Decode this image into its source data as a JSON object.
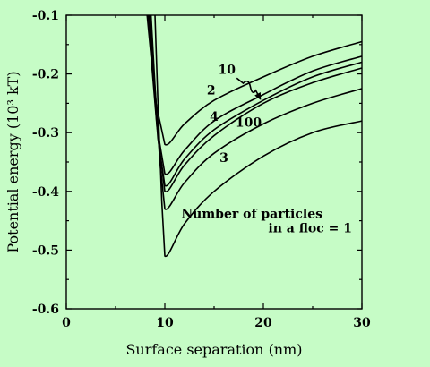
{
  "colors": {
    "background": "#c6fcc6",
    "ink": "#000000"
  },
  "chart_data": {
    "type": "line",
    "title": "",
    "xlabel": "Surface separation (nm)",
    "ylabel": "Potential energy (10³ kT)",
    "xlim": [
      0,
      30
    ],
    "ylim": [
      -0.6,
      -0.1
    ],
    "xticks": [
      0,
      10,
      20,
      30
    ],
    "xtick_labels": [
      "0",
      "10",
      "20",
      "30"
    ],
    "yticks": [
      -0.1,
      -0.2,
      -0.3,
      -0.4,
      -0.5,
      -0.6
    ],
    "ytick_labels": [
      "-0.1",
      "-0.2",
      "-0.3",
      "-0.4",
      "-0.5",
      "-0.6"
    ],
    "grid": false,
    "legend": "none",
    "series": [
      {
        "name": "1",
        "x": [
          9.0,
          9.3,
          9.7,
          10.0,
          12,
          15,
          20,
          25,
          30
        ],
        "y": [
          -0.1,
          -0.25,
          -0.42,
          -0.51,
          -0.455,
          -0.4,
          -0.34,
          -0.3,
          -0.28
        ]
      },
      {
        "name": "3",
        "x": [
          8.6,
          9.0,
          9.5,
          10.0,
          12,
          15,
          20,
          25,
          30
        ],
        "y": [
          -0.1,
          -0.22,
          -0.35,
          -0.43,
          -0.385,
          -0.335,
          -0.285,
          -0.25,
          -0.225
        ]
      },
      {
        "name": "100",
        "x": [
          8.5,
          8.9,
          9.4,
          10.0,
          12,
          15,
          20,
          25,
          30
        ],
        "y": [
          -0.1,
          -0.2,
          -0.32,
          -0.4,
          -0.355,
          -0.305,
          -0.25,
          -0.215,
          -0.19
        ]
      },
      {
        "name": "10",
        "x": [
          8.4,
          8.8,
          9.3,
          10.0,
          12,
          15,
          20,
          25,
          30
        ],
        "y": [
          -0.1,
          -0.2,
          -0.31,
          -0.39,
          -0.345,
          -0.295,
          -0.245,
          -0.205,
          -0.18
        ]
      },
      {
        "name": "4",
        "x": [
          8.3,
          8.7,
          9.2,
          10.0,
          12,
          15,
          20,
          25,
          30
        ],
        "y": [
          -0.1,
          -0.19,
          -0.29,
          -0.37,
          -0.33,
          -0.28,
          -0.235,
          -0.195,
          -0.17
        ]
      },
      {
        "name": "2",
        "x": [
          8.2,
          8.6,
          9.1,
          10.0,
          12,
          15,
          20,
          25,
          30
        ],
        "y": [
          -0.1,
          -0.17,
          -0.25,
          -0.32,
          -0.285,
          -0.245,
          -0.205,
          -0.17,
          -0.145
        ]
      }
    ],
    "annotations": [
      {
        "text": "2",
        "x": 14.7,
        "y": -0.235
      },
      {
        "text": "4",
        "x": 15.0,
        "y": -0.28
      },
      {
        "text": "10",
        "x": 16.3,
        "y": -0.2
      },
      {
        "text": "100",
        "x": 18.5,
        "y": -0.29
      },
      {
        "text": "3",
        "x": 16.0,
        "y": -0.35
      },
      {
        "text": "Number of particles",
        "x": 26.0,
        "y": -0.445
      },
      {
        "text": "in a floc = 1",
        "x": 29.0,
        "y": -0.47
      }
    ],
    "pointer": {
      "x1": 17.3,
      "y1": -0.207,
      "x2": 19.7,
      "y2": -0.243
    }
  }
}
